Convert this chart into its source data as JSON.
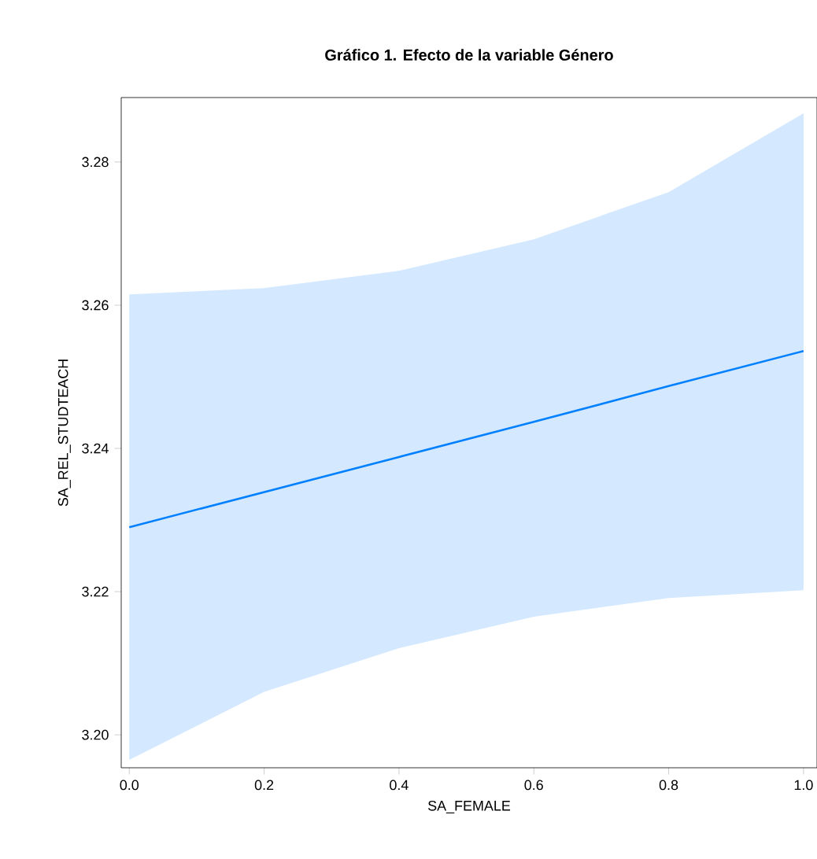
{
  "chart_data": {
    "type": "line",
    "title": "Gráfico 1. Efecto de la variable Género",
    "xlabel": "SA_FEMALE",
    "ylabel": "SA_REL_STUDTEACH",
    "x": [
      0,
      0.2,
      0.4,
      0.6,
      0.8,
      1
    ],
    "series": [
      {
        "color": "#0080ff",
        "values": [
          3.229,
          3.2339,
          3.2388,
          3.2437,
          3.2487,
          3.2536
        ],
        "lower": [
          3.1965,
          3.206,
          3.2121,
          3.2165,
          3.2191,
          3.2202
        ],
        "upper": [
          3.2615,
          3.2624,
          3.2648,
          3.2692,
          3.2758,
          3.2868
        ]
      }
    ],
    "xlim": [
      -0.012,
      1.02
    ],
    "ylim": [
      3.1954,
      3.289
    ],
    "xticks": [
      {
        "value": 0,
        "label": "0.0"
      },
      {
        "value": 0.2,
        "label": "0.2"
      },
      {
        "value": 0.4,
        "label": "0.4"
      },
      {
        "value": 0.6,
        "label": "0.6"
      },
      {
        "value": 0.8,
        "label": "0.8"
      },
      {
        "value": 1,
        "label": "1.0"
      }
    ],
    "yticks": [
      {
        "value": 3.2,
        "label": "3.20"
      },
      {
        "value": 3.22,
        "label": "3.22"
      },
      {
        "value": 3.24,
        "label": "3.24"
      },
      {
        "value": 3.26,
        "label": "3.26"
      },
      {
        "value": 3.28,
        "label": "3.28"
      }
    ],
    "grid": false,
    "marker": "none",
    "line_style": "solid"
  }
}
